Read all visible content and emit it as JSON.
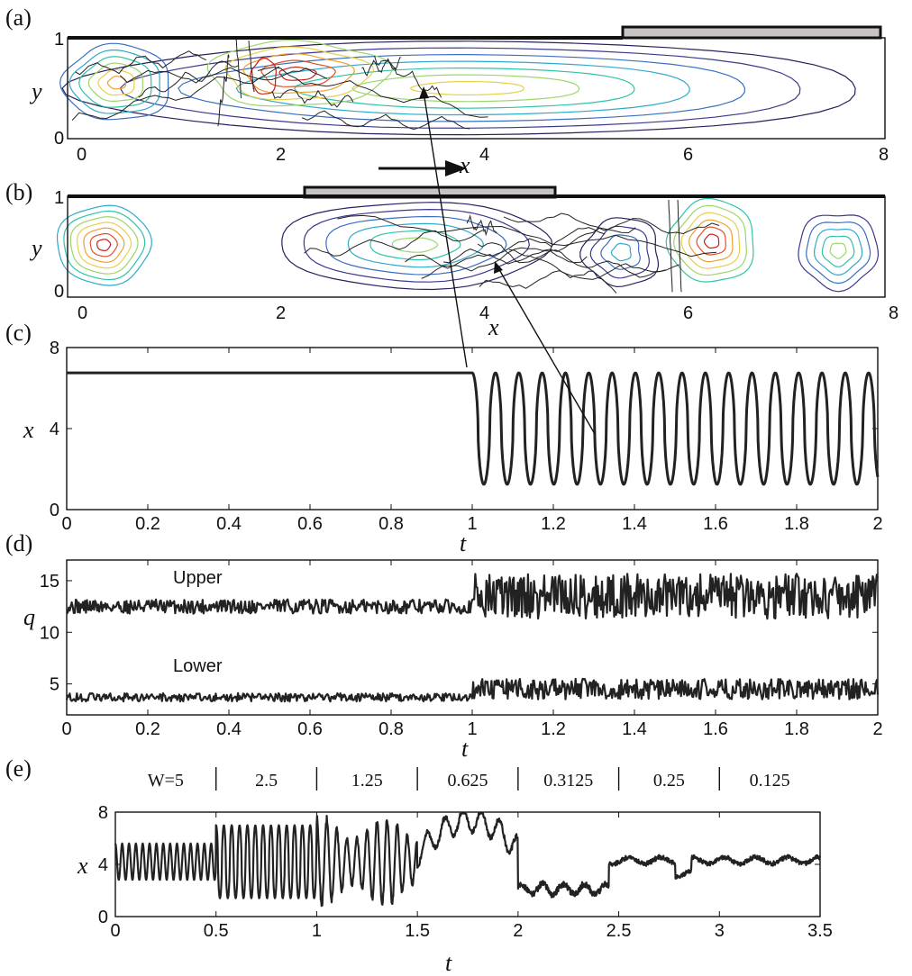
{
  "panels": {
    "a": {
      "label": "(a)",
      "xlabel": "x",
      "ylabel": "y",
      "xticks": [
        "0",
        "2",
        "4",
        "6",
        "8"
      ],
      "yticks": [
        "0",
        "1"
      ],
      "xlim": [
        0,
        8
      ],
      "ylim": [
        0,
        1
      ],
      "heater": [
        5.25,
        7.9
      ]
    },
    "b": {
      "label": "(b)",
      "xlabel": "x",
      "ylabel": "y",
      "xticks": [
        "0",
        "2",
        "4",
        "6",
        "8"
      ],
      "yticks": [
        "0",
        "1"
      ],
      "xlim": [
        0,
        8
      ],
      "ylim": [
        0,
        1
      ],
      "heater": [
        2.25,
        4.5
      ]
    },
    "c": {
      "label": "(c)"
    },
    "d": {
      "label": "(d)"
    },
    "e": {
      "label": "(e)"
    }
  },
  "motion_arrow": {
    "direction": "right",
    "label": "x"
  },
  "contour_colors": [
    "#2b1f5c",
    "#3b3a8c",
    "#3a6fc0",
    "#2fa9c9",
    "#2ec4a6",
    "#9bd56b",
    "#e6d04a",
    "#f0a030",
    "#e0502a",
    "#c81e1e"
  ],
  "chart_data": [
    {
      "id": "c",
      "type": "line",
      "xlabel": "t",
      "ylabel": "x",
      "xlim": [
        0,
        2
      ],
      "ylim": [
        0,
        8
      ],
      "xticks": [
        "0",
        "0.2",
        "0.4",
        "0.6",
        "0.8",
        "1",
        "1.2",
        "1.4",
        "1.6",
        "1.8",
        "2"
      ],
      "yticks": [
        "0",
        "4",
        "8"
      ],
      "steady": {
        "t_end": 1.0,
        "x": 6.75
      },
      "oscillation": {
        "t_start": 1.0,
        "t_end": 2.0,
        "period": 0.0575,
        "min": 1.25,
        "max": 6.75
      }
    },
    {
      "id": "d",
      "type": "line",
      "xlabel": "t",
      "ylabel": "q",
      "xlim": [
        0,
        2
      ],
      "ylim": [
        2,
        17
      ],
      "xticks": [
        "0",
        "0.2",
        "0.4",
        "0.6",
        "0.8",
        "1",
        "1.2",
        "1.4",
        "1.6",
        "1.8",
        "2"
      ],
      "yticks": [
        "5",
        "10",
        "15"
      ],
      "series": [
        {
          "name": "Upper",
          "before_mean": 12.5,
          "before_amp": 0.7,
          "after_mean": 13.5,
          "after_amp": 2.2,
          "t_switch": 1.0
        },
        {
          "name": "Lower",
          "before_mean": 3.7,
          "before_amp": 0.4,
          "after_mean": 4.5,
          "after_amp": 1.0,
          "t_switch": 1.0
        }
      ]
    },
    {
      "id": "e",
      "type": "line",
      "xlabel": "t",
      "ylabel": "x",
      "xlim": [
        0,
        3.5
      ],
      "ylim": [
        0,
        8
      ],
      "xticks": [
        "0",
        "0.5",
        "1",
        "1.5",
        "2",
        "2.5",
        "3",
        "3.5"
      ],
      "yticks": [
        "0",
        "4",
        "8"
      ],
      "regimes": [
        {
          "label": "W=5",
          "t_start": 0,
          "t_end": 0.5
        },
        {
          "label": "2.5",
          "t_start": 0.5,
          "t_end": 1.0
        },
        {
          "label": "1.25",
          "t_start": 1.0,
          "t_end": 1.5
        },
        {
          "label": "0.625",
          "t_start": 1.5,
          "t_end": 2.0
        },
        {
          "label": "0.3125",
          "t_start": 2.0,
          "t_end": 2.5
        },
        {
          "label": "0.25",
          "t_start": 2.5,
          "t_end": 3.0
        },
        {
          "label": "0.125",
          "t_start": 3.0,
          "t_end": 3.5
        }
      ]
    }
  ]
}
